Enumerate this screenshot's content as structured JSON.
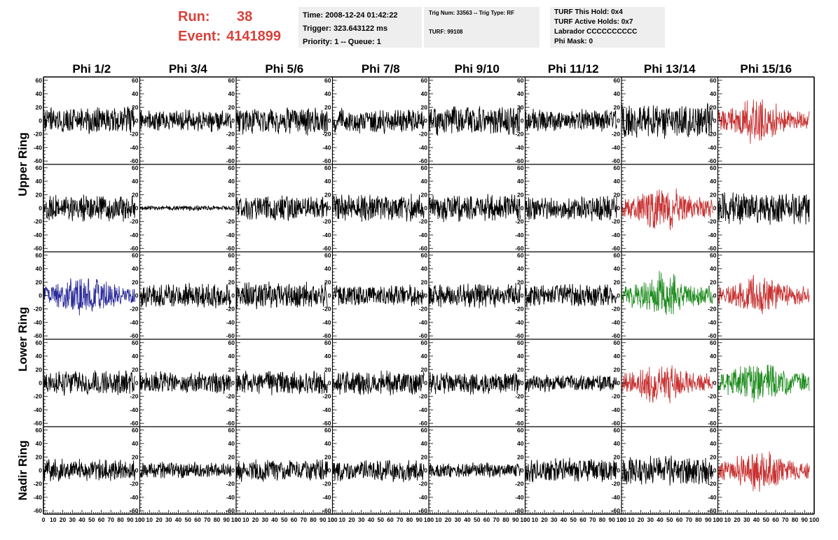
{
  "header": {
    "run_label": "Run:",
    "run_value": "38",
    "event_label": "Event:",
    "event_value": "4141899"
  },
  "info_time": {
    "time": "Time: 2008-12-24 01:42:22",
    "trigger": "Trigger: 323.643122 ms",
    "priority": "Priority: 1 -- Queue: 1"
  },
  "info_trig": {
    "trig": "Trig Num: 33563 -- Trig Type: RF",
    "turf": "TURF: 99108"
  },
  "info_turf": {
    "hold": "TURF This Hold: 0x4",
    "active": "TURF Active Holds: 0x7",
    "labrador": "Labrador CCCCCCCCCC",
    "phimask": "Phi Mask: 0"
  },
  "columns": [
    "Phi 1/2",
    "Phi 3/4",
    "Phi 5/6",
    "Phi 7/8",
    "Phi 9/10",
    "Phi 11/12",
    "Phi 13/14",
    "Phi 15/16"
  ],
  "ring_labels": [
    "Upper Ring",
    "Lower Ring",
    "Nadir Ring"
  ],
  "axes": {
    "y_ticks": [
      "60",
      "40",
      "20",
      "0",
      "-20",
      "-40",
      "-60"
    ],
    "x_ticks": [
      "0",
      "10",
      "20",
      "30",
      "40",
      "50",
      "60",
      "70",
      "80",
      "90",
      "100"
    ],
    "y_range": [
      -65,
      65
    ],
    "x_range": [
      0,
      100
    ]
  },
  "colors": {
    "red": "#c83232",
    "blue": "#2a2a9a",
    "green": "#1f8c1f",
    "black": "#000000",
    "accent": "#d8413a"
  },
  "chart_data": {
    "type": "line",
    "x_range": [
      0,
      100
    ],
    "y_range": [
      -65,
      65
    ],
    "samples_per_trace": 260,
    "rows": [
      {
        "traces": [
          {
            "color": "black",
            "amp": 22
          },
          {
            "color": "black",
            "amp": 18
          },
          {
            "color": "black",
            "amp": 23
          },
          {
            "color": "black",
            "amp": 20
          },
          {
            "color": "black",
            "amp": 25
          },
          {
            "color": "black",
            "amp": 18
          },
          {
            "color": "black",
            "amp": 28
          },
          {
            "color": "red",
            "amp": 30
          }
        ]
      },
      {
        "traces": [
          {
            "color": "black",
            "amp": 22
          },
          {
            "color": "black",
            "amp": 4
          },
          {
            "color": "black",
            "amp": 20
          },
          {
            "color": "black",
            "amp": 22
          },
          {
            "color": "black",
            "amp": 22
          },
          {
            "color": "black",
            "amp": 20
          },
          {
            "color": "red",
            "amp": 30
          },
          {
            "color": "black",
            "amp": 26
          }
        ]
      },
      {
        "traces": [
          {
            "color": "blue",
            "amp": 28
          },
          {
            "color": "black",
            "amp": 20
          },
          {
            "color": "black",
            "amp": 22
          },
          {
            "color": "black",
            "amp": 18
          },
          {
            "color": "black",
            "amp": 20
          },
          {
            "color": "black",
            "amp": 20
          },
          {
            "color": "green",
            "amp": 30
          },
          {
            "color": "red",
            "amp": 26
          }
        ]
      },
      {
        "traces": [
          {
            "color": "black",
            "amp": 20
          },
          {
            "color": "black",
            "amp": 18
          },
          {
            "color": "black",
            "amp": 20
          },
          {
            "color": "black",
            "amp": 20
          },
          {
            "color": "black",
            "amp": 18
          },
          {
            "color": "black",
            "amp": 14
          },
          {
            "color": "red",
            "amp": 28
          },
          {
            "color": "green",
            "amp": 30
          }
        ]
      },
      {
        "traces": [
          {
            "color": "black",
            "amp": 18
          },
          {
            "color": "black",
            "amp": 14
          },
          {
            "color": "black",
            "amp": 18
          },
          {
            "color": "black",
            "amp": 18
          },
          {
            "color": "black",
            "amp": 12
          },
          {
            "color": "black",
            "amp": 20
          },
          {
            "color": "black",
            "amp": 24
          },
          {
            "color": "red",
            "amp": 28
          }
        ]
      }
    ]
  }
}
